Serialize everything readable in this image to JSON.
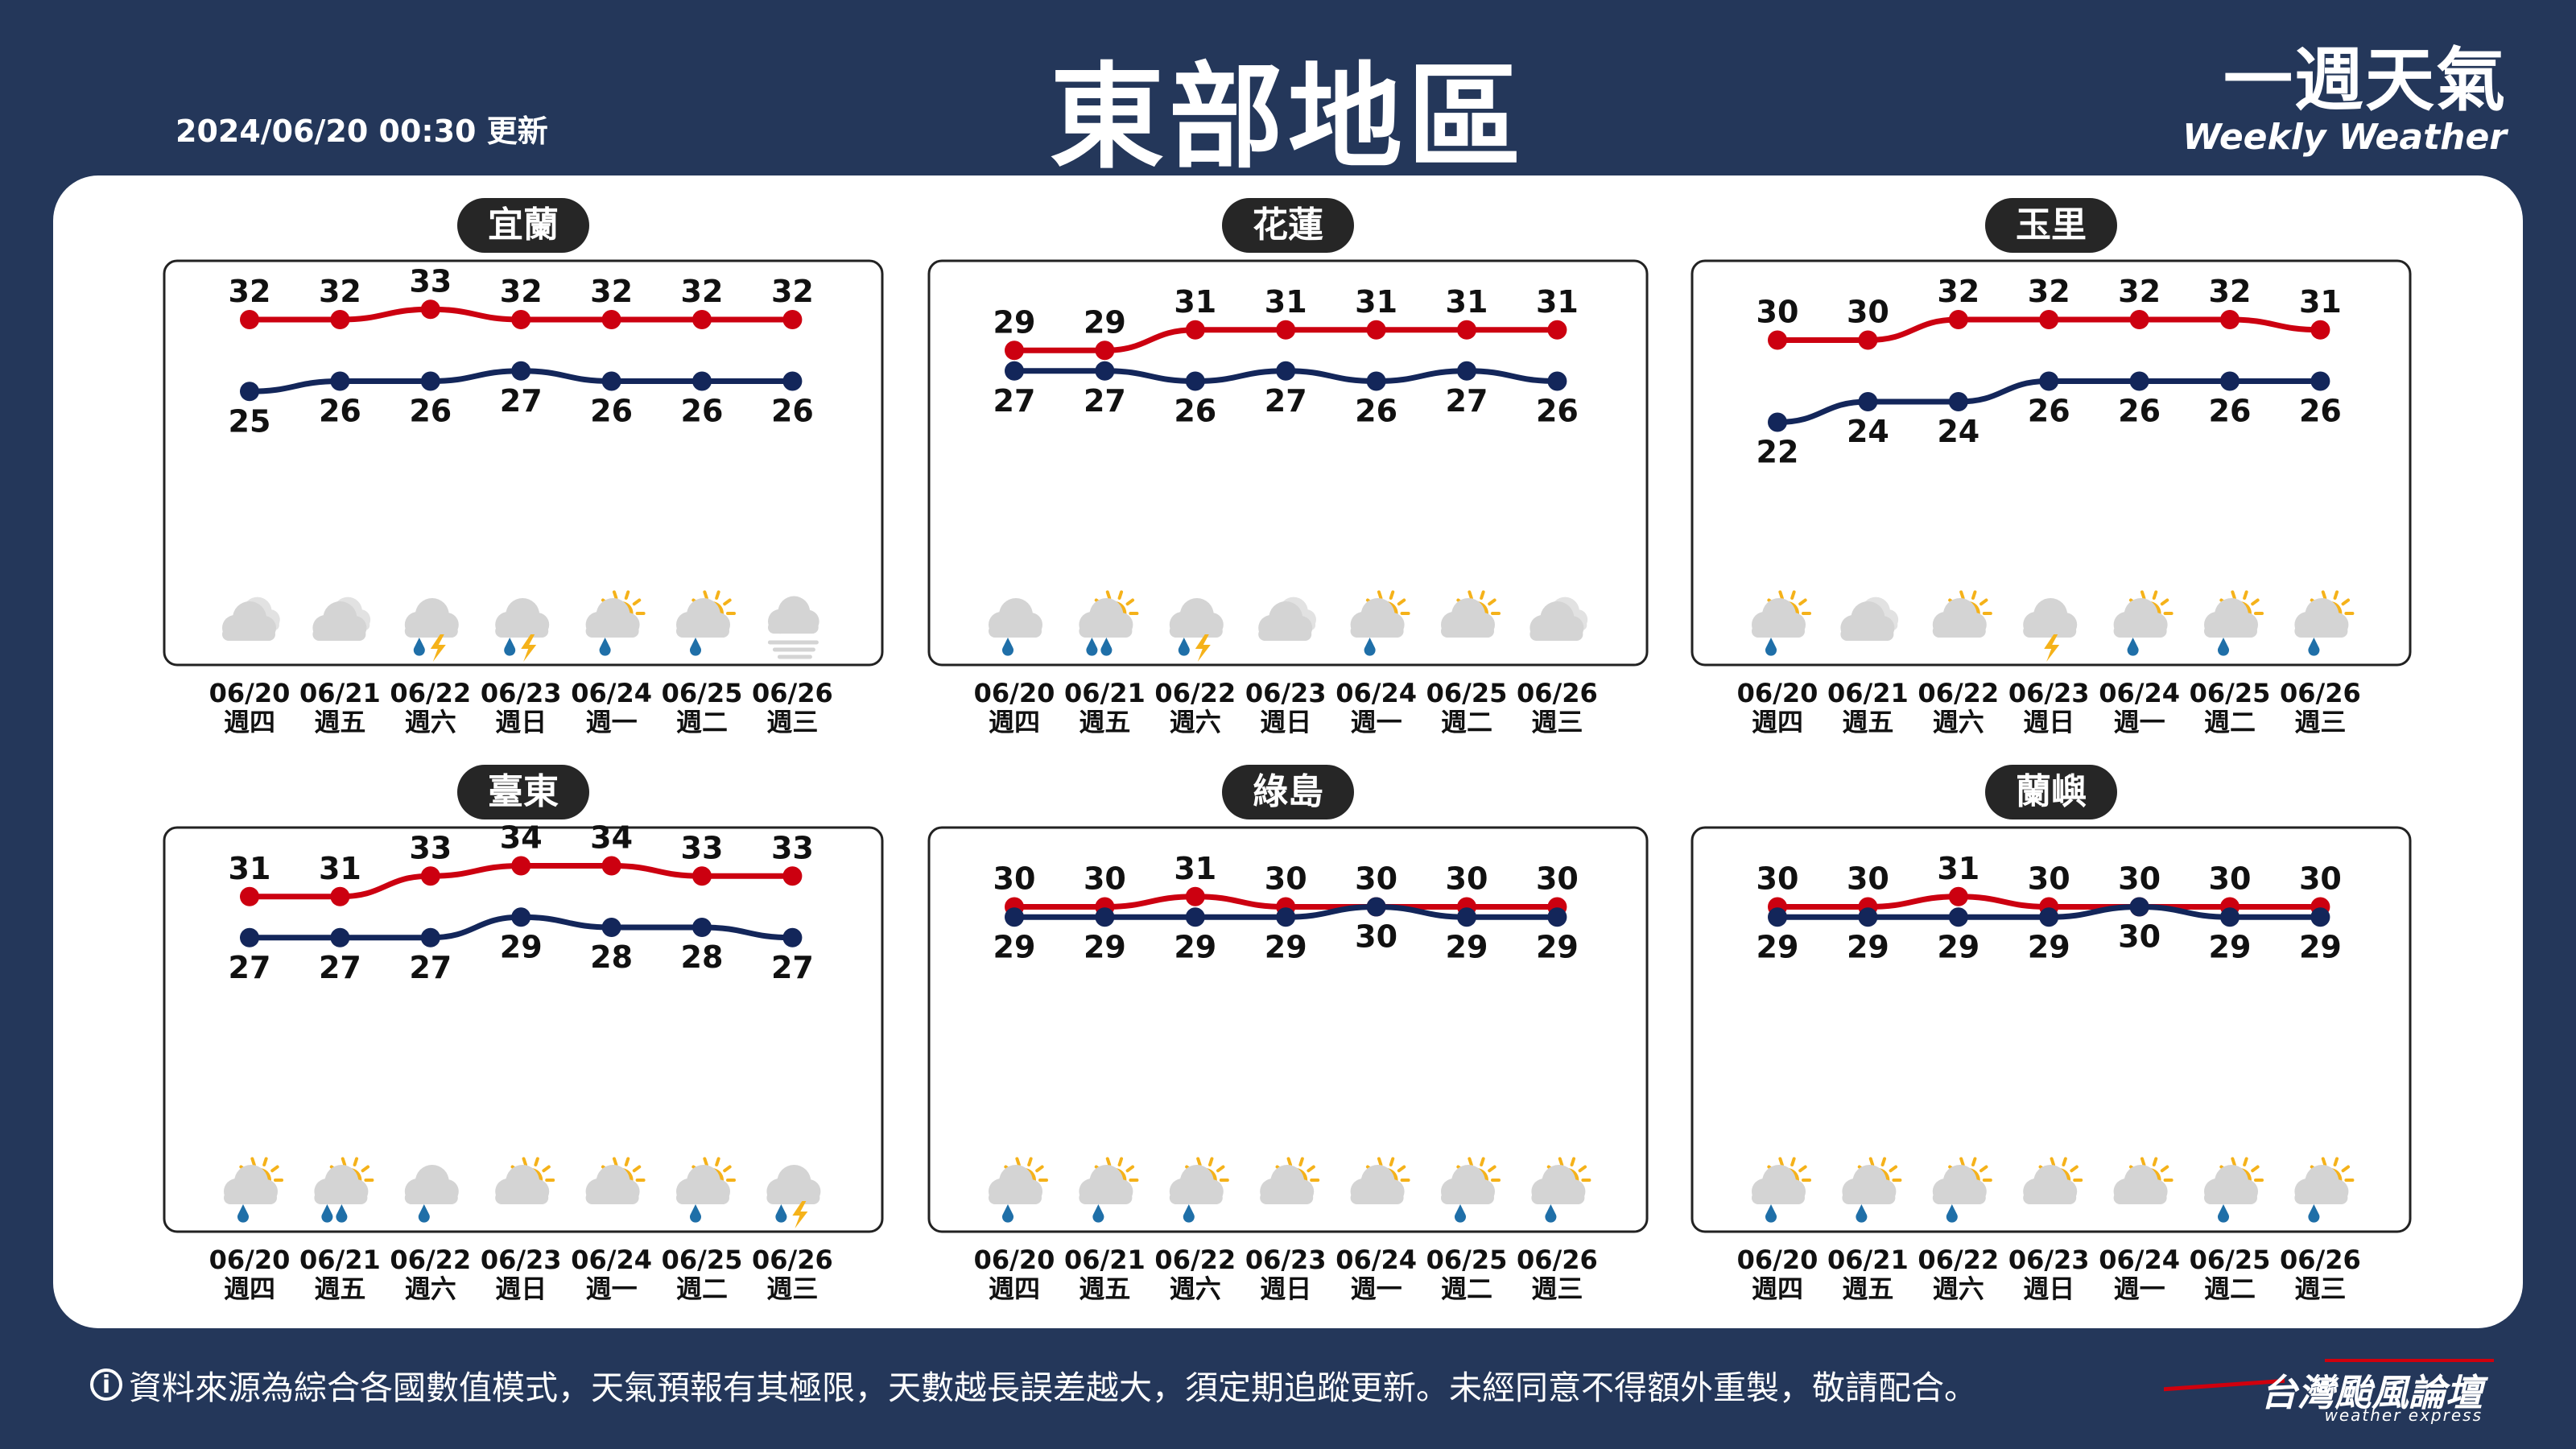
{
  "header": {
    "update_time": "2024/06/20 00:30 更新",
    "title": "東部地區",
    "logo_zh": "一週天氣",
    "logo_en": "Weekly Weather"
  },
  "footer": {
    "info_icon": "i",
    "disclaimer": "資料來源為綜合各國數值模式，天氣預報有其極限，天數越長誤差越大，須定期追蹤更新。未經同意不得額外重製，敬請配合。",
    "brand_name": "台灣颱風論壇",
    "brand_sub": "weather express"
  },
  "colors": {
    "background": "#24375a",
    "max_line": "#cc0010",
    "min_line": "#13265a",
    "label_bg": "#262626",
    "rain": "#1f6fa8",
    "sun": "#f5b21a",
    "bolt": "#f5b21a",
    "cloud": "#d4d4d4"
  },
  "chart_data": [
    {
      "type": "line",
      "title": "宜蘭",
      "dates": [
        "06/20",
        "06/21",
        "06/22",
        "06/23",
        "06/24",
        "06/25",
        "06/26"
      ],
      "weekdays": [
        "週四",
        "週五",
        "週六",
        "週日",
        "週一",
        "週二",
        "週三"
      ],
      "series": [
        {
          "values": [
            32,
            32,
            33,
            32,
            32,
            32,
            32
          ]
        },
        {
          "values": [
            25,
            26,
            26,
            27,
            26,
            26,
            26
          ]
        }
      ],
      "weather_icons": [
        "cloudy",
        "cloudy",
        "thunder-rain",
        "thunder-rain",
        "sun-rain",
        "sun-rain",
        "fog"
      ]
    },
    {
      "type": "line",
      "title": "花蓮",
      "dates": [
        "06/20",
        "06/21",
        "06/22",
        "06/23",
        "06/24",
        "06/25",
        "06/26"
      ],
      "weekdays": [
        "週四",
        "週五",
        "週六",
        "週日",
        "週一",
        "週二",
        "週三"
      ],
      "series": [
        {
          "values": [
            29,
            29,
            31,
            31,
            31,
            31,
            31
          ]
        },
        {
          "values": [
            27,
            27,
            26,
            27,
            26,
            27,
            26
          ]
        }
      ],
      "weather_icons": [
        "rain",
        "sun-heavy-rain",
        "thunder-rain",
        "cloudy",
        "sun-rain",
        "partly-sunny",
        "cloudy"
      ]
    },
    {
      "type": "line",
      "title": "玉里",
      "dates": [
        "06/20",
        "06/21",
        "06/22",
        "06/23",
        "06/24",
        "06/25",
        "06/26"
      ],
      "weekdays": [
        "週四",
        "週五",
        "週六",
        "週日",
        "週一",
        "週二",
        "週三"
      ],
      "series": [
        {
          "values": [
            30,
            30,
            32,
            32,
            32,
            32,
            31
          ]
        },
        {
          "values": [
            22,
            24,
            24,
            26,
            26,
            26,
            26
          ]
        }
      ],
      "weather_icons": [
        "sun-rain",
        "cloudy",
        "partly-sunny",
        "thunder",
        "sun-rain",
        "sun-rain",
        "sun-rain"
      ]
    },
    {
      "type": "line",
      "title": "臺東",
      "dates": [
        "06/20",
        "06/21",
        "06/22",
        "06/23",
        "06/24",
        "06/25",
        "06/26"
      ],
      "weekdays": [
        "週四",
        "週五",
        "週六",
        "週日",
        "週一",
        "週二",
        "週三"
      ],
      "series": [
        {
          "values": [
            31,
            31,
            33,
            34,
            34,
            33,
            33
          ]
        },
        {
          "values": [
            27,
            27,
            27,
            29,
            28,
            28,
            27
          ]
        }
      ],
      "weather_icons": [
        "sun-rain",
        "sun-heavy-rain",
        "rain",
        "partly-sunny",
        "partly-sunny",
        "sun-rain",
        "thunder-rain"
      ]
    },
    {
      "type": "line",
      "title": "綠島",
      "dates": [
        "06/20",
        "06/21",
        "06/22",
        "06/23",
        "06/24",
        "06/25",
        "06/26"
      ],
      "weekdays": [
        "週四",
        "週五",
        "週六",
        "週日",
        "週一",
        "週二",
        "週三"
      ],
      "series": [
        {
          "values": [
            30,
            30,
            31,
            30,
            30,
            30,
            30
          ]
        },
        {
          "values": [
            29,
            29,
            29,
            29,
            30,
            29,
            29
          ]
        }
      ],
      "weather_icons": [
        "sun-rain",
        "sun-rain",
        "sun-rain",
        "partly-sunny",
        "partly-sunny",
        "sun-rain",
        "sun-rain"
      ]
    },
    {
      "type": "line",
      "title": "蘭嶼",
      "dates": [
        "06/20",
        "06/21",
        "06/22",
        "06/23",
        "06/24",
        "06/25",
        "06/26"
      ],
      "weekdays": [
        "週四",
        "週五",
        "週六",
        "週日",
        "週一",
        "週二",
        "週三"
      ],
      "series": [
        {
          "values": [
            30,
            30,
            31,
            30,
            30,
            30,
            30
          ]
        },
        {
          "values": [
            29,
            29,
            29,
            29,
            30,
            29,
            29
          ]
        }
      ],
      "weather_icons": [
        "sun-rain",
        "sun-rain",
        "sun-rain",
        "partly-sunny",
        "partly-sunny",
        "sun-rain",
        "sun-rain"
      ]
    }
  ]
}
